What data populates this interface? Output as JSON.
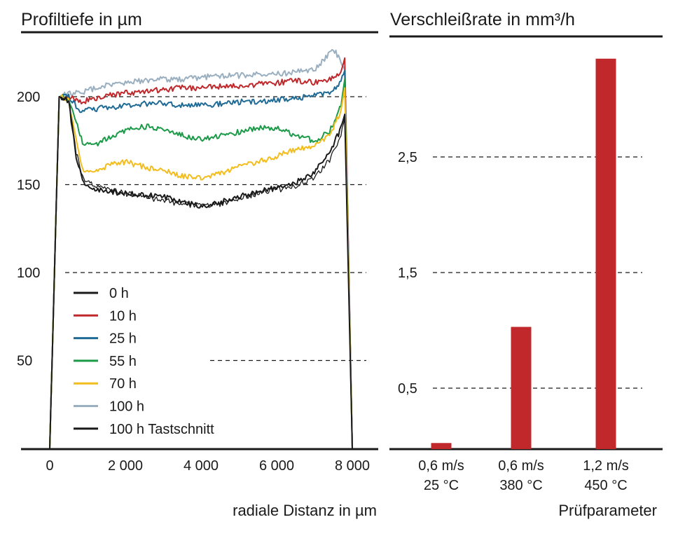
{
  "chart_data": [
    {
      "type": "line",
      "title": "Profiltiefe in µm",
      "xlabel": "radiale Distanz in µm",
      "ylabel": "",
      "xlim": [
        0,
        8000
      ],
      "ylim": [
        0,
        220
      ],
      "x_ticks": [
        "0",
        "2 000",
        "4 000",
        "6 000",
        "8 000"
      ],
      "x_tick_values": [
        0,
        2000,
        4000,
        6000,
        8000
      ],
      "y_ticks": [
        "50",
        "100",
        "150",
        "200"
      ],
      "y_tick_values": [
        50,
        100,
        150,
        200
      ],
      "grid": "dashed horizontal at 50, 100, 150, 200",
      "legend_position": "lower-left",
      "series": [
        {
          "name": "0 h",
          "color": "#1a1a1a",
          "x": [
            0,
            250,
            500,
            700,
            900,
            1200,
            1600,
            2000,
            2500,
            3000,
            3500,
            4000,
            4500,
            5000,
            5500,
            6000,
            6500,
            7000,
            7400,
            7700,
            7800,
            8000
          ],
          "y": [
            0,
            200,
            198,
            165,
            150,
            147,
            146,
            145,
            144,
            143,
            140,
            138,
            140,
            143,
            146,
            148,
            151,
            157,
            168,
            182,
            190,
            0
          ]
        },
        {
          "name": "10 h",
          "color": "#c0282b",
          "x": [
            0,
            250,
            500,
            800,
            1200,
            1600,
            2000,
            2500,
            3000,
            3500,
            4000,
            4500,
            5000,
            5500,
            6000,
            6500,
            7000,
            7400,
            7700,
            7800,
            8000
          ],
          "y": [
            0,
            200,
            200,
            197,
            199,
            201,
            202,
            203,
            204,
            205,
            205,
            206,
            206,
            207,
            208,
            209,
            208,
            210,
            213,
            222,
            0
          ]
        },
        {
          "name": "25 h",
          "color": "#1f6b96",
          "x": [
            0,
            250,
            500,
            800,
            1200,
            1600,
            2000,
            2500,
            3000,
            3500,
            4000,
            4500,
            5000,
            5500,
            6000,
            6500,
            7000,
            7400,
            7700,
            7800,
            8000
          ],
          "y": [
            0,
            200,
            200,
            192,
            193,
            194,
            195,
            196,
            196,
            195,
            195,
            196,
            197,
            197,
            198,
            199,
            201,
            202,
            208,
            215,
            0
          ]
        },
        {
          "name": "55 h",
          "color": "#1b9a48",
          "x": [
            0,
            250,
            500,
            700,
            900,
            1200,
            1600,
            2000,
            2500,
            3000,
            3500,
            4000,
            4500,
            5000,
            5500,
            6000,
            6500,
            7000,
            7400,
            7700,
            7800,
            8000
          ],
          "y": [
            0,
            200,
            198,
            185,
            172,
            173,
            177,
            181,
            183,
            182,
            178,
            176,
            178,
            180,
            182,
            182,
            178,
            175,
            180,
            195,
            210,
            0
          ]
        },
        {
          "name": "70 h",
          "color": "#f2bd1d",
          "x": [
            0,
            250,
            500,
            700,
            900,
            1200,
            1600,
            2000,
            2500,
            3000,
            3500,
            4000,
            4500,
            5000,
            5500,
            6000,
            6500,
            7000,
            7400,
            7700,
            7800,
            8000
          ],
          "y": [
            0,
            200,
            198,
            175,
            157,
            157,
            161,
            163,
            160,
            158,
            155,
            154,
            156,
            160,
            163,
            166,
            170,
            172,
            178,
            192,
            205,
            0
          ]
        },
        {
          "name": "100 h",
          "color": "#9aafc0",
          "x": [
            0,
            250,
            500,
            800,
            1200,
            1600,
            2000,
            2500,
            3000,
            3500,
            4000,
            4500,
            5000,
            5500,
            6000,
            6500,
            7000,
            7300,
            7500,
            7700,
            7800,
            8000
          ],
          "y": [
            0,
            200,
            202,
            202,
            205,
            207,
            208,
            209,
            210,
            210,
            211,
            212,
            212,
            213,
            213,
            214,
            215,
            222,
            227,
            221,
            215,
            0
          ]
        },
        {
          "name": "100 h Tastschnitt",
          "color": "#1a1a1a",
          "x": [
            250,
            500,
            700,
            900,
            1200,
            1600,
            2000,
            2500,
            3000,
            3500,
            4000,
            4500,
            5000,
            5500,
            6000,
            6500,
            7000,
            7400,
            7700,
            7800
          ],
          "y": [
            200,
            198,
            168,
            153,
            149,
            147,
            145,
            143,
            141,
            139,
            138,
            139,
            142,
            145,
            147,
            149,
            154,
            164,
            178,
            188
          ]
        }
      ]
    },
    {
      "type": "bar",
      "title": "Verschleißrate in mm³/h",
      "xlabel": "Prüfparameter",
      "ylabel": "",
      "ylim": [
        0,
        3.5
      ],
      "y_ticks": [
        "0,5",
        "1,5",
        "2,5"
      ],
      "y_tick_values": [
        0.5,
        1.5,
        2.5
      ],
      "grid": "dashed horizontal at 0,5, 1,5, 2,5",
      "categories": [
        [
          "0,6 m/s",
          "25 °C"
        ],
        [
          "0,6 m/s",
          "380 °C"
        ],
        [
          "1,2 m/s",
          "450 °C"
        ]
      ],
      "values": [
        0.05,
        1.03,
        3.35
      ],
      "color": "#c0282b"
    }
  ]
}
